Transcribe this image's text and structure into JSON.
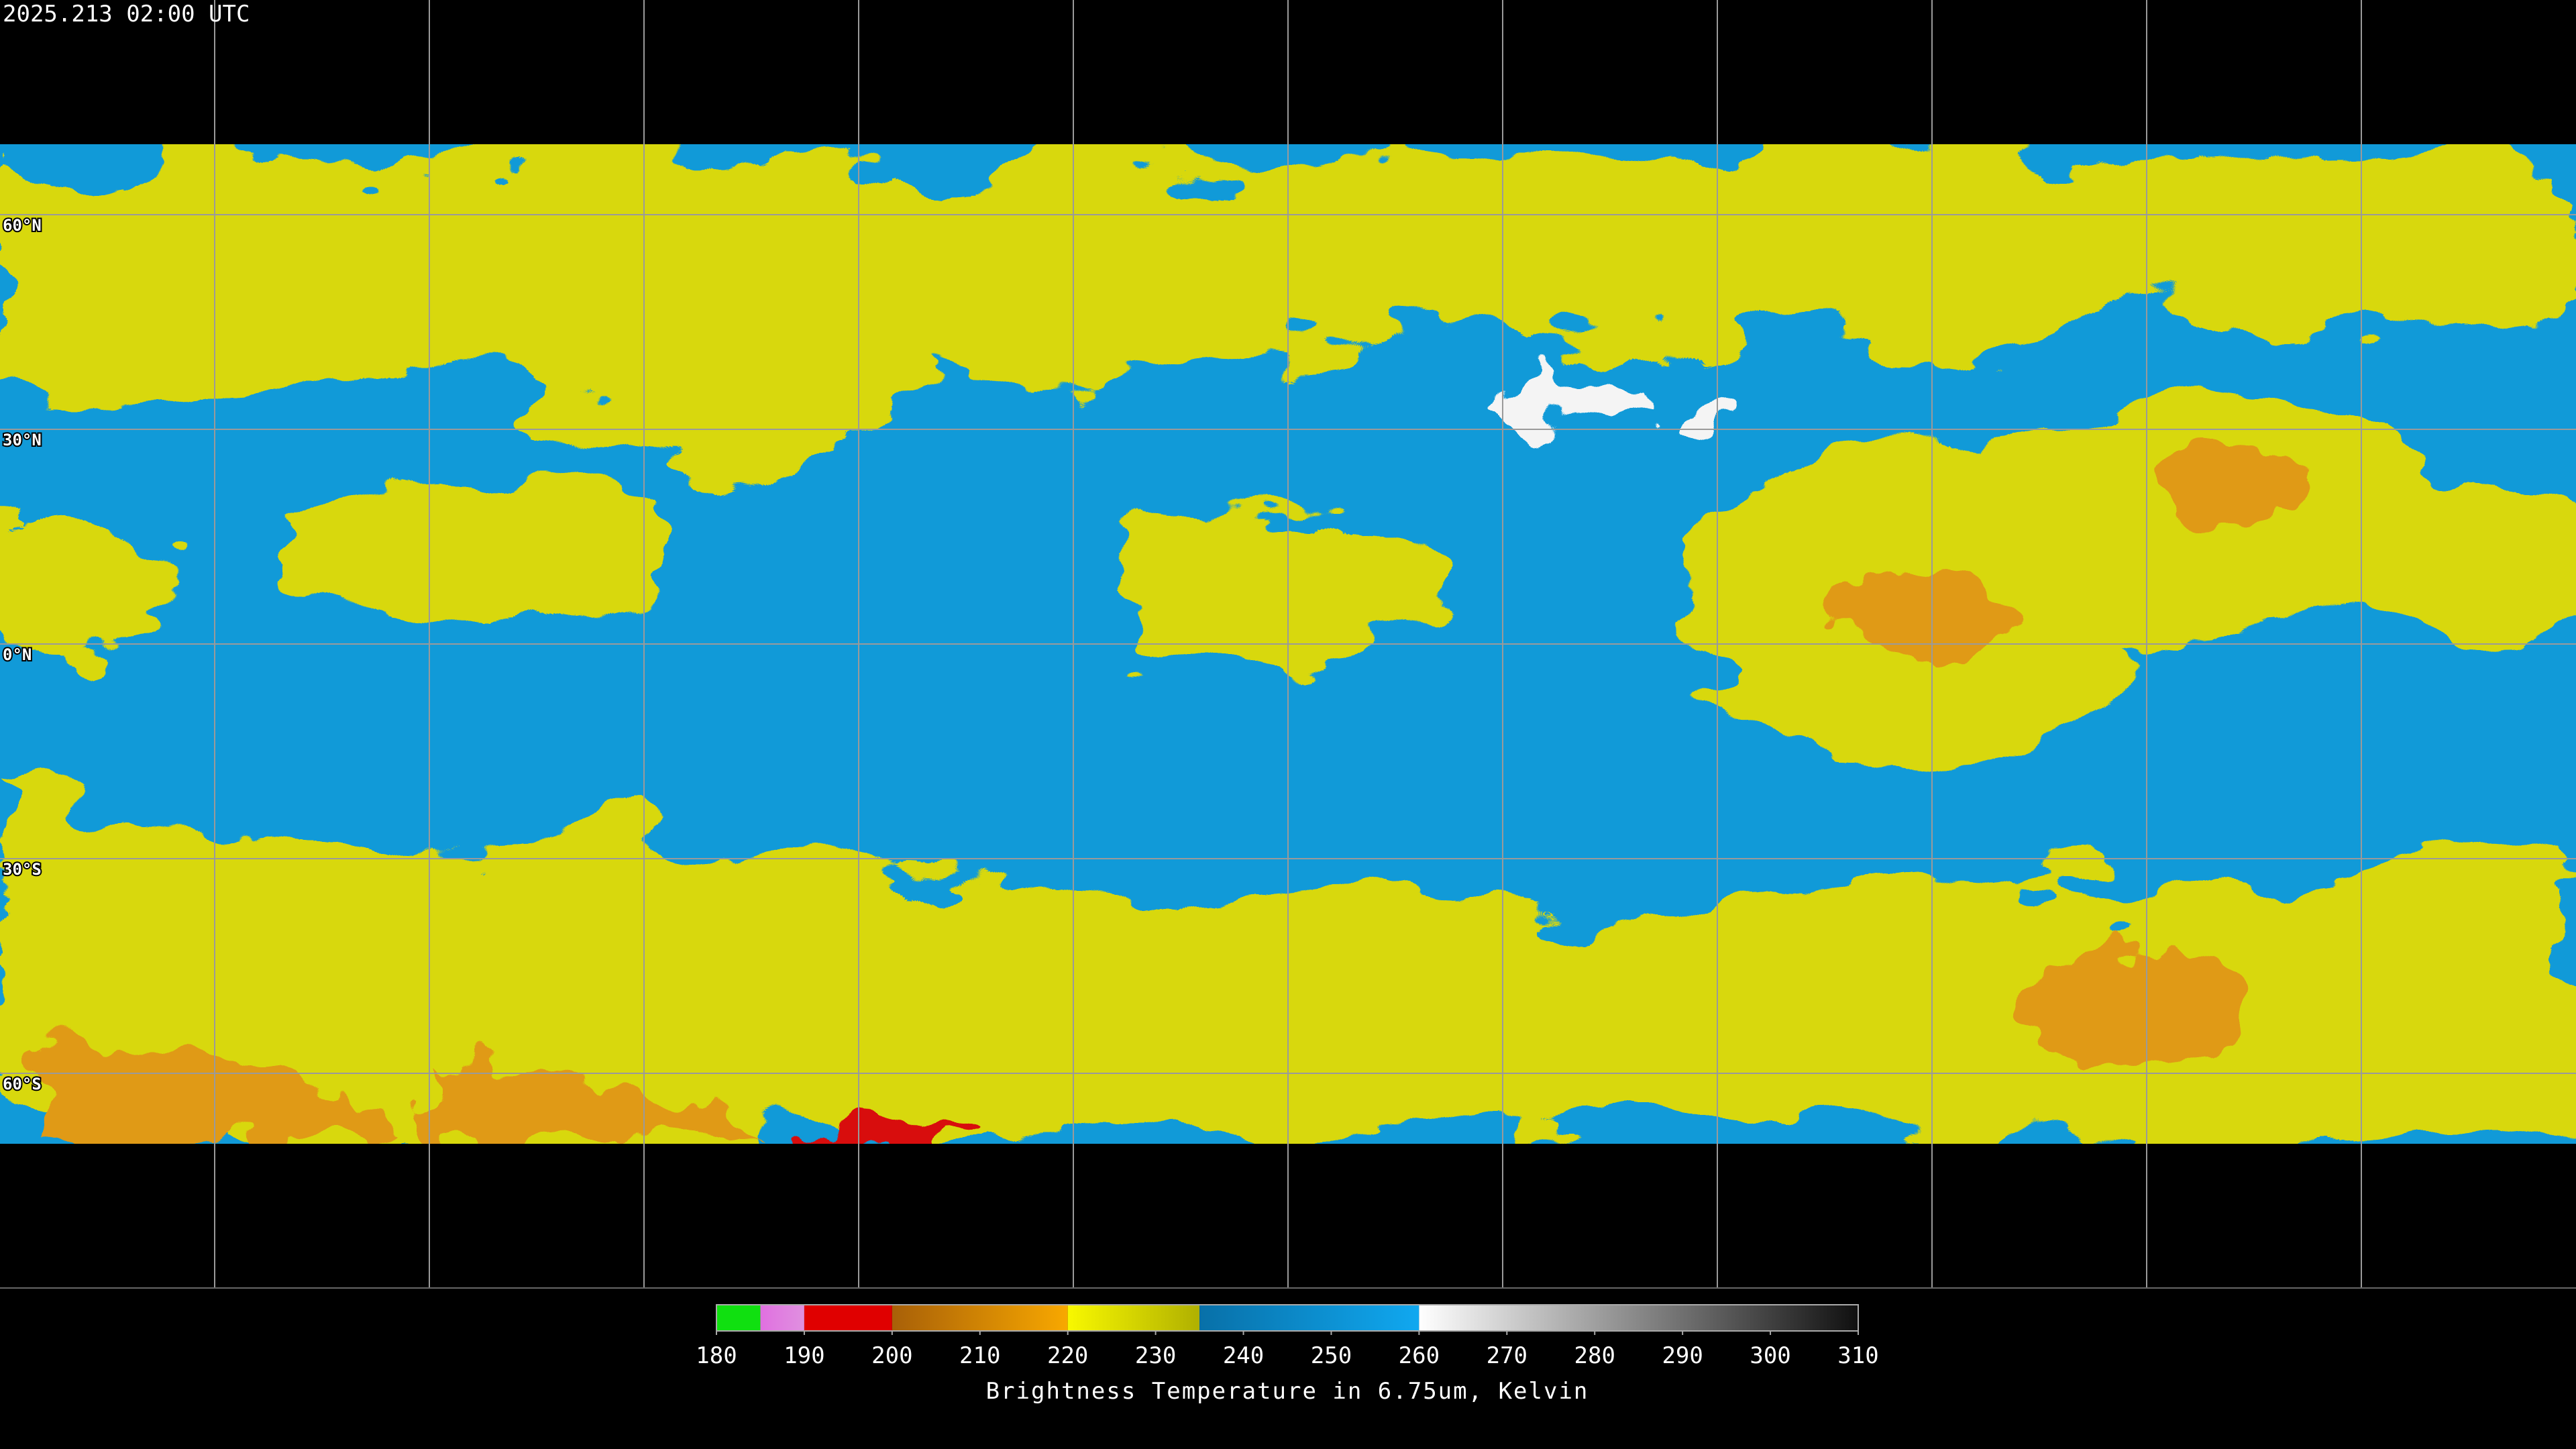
{
  "header": {
    "timestamp": "2025.213 02:00 UTC"
  },
  "map": {
    "latitude_labels": [
      "60°N",
      "30°N",
      "0°N",
      "30°S",
      "60°S"
    ]
  },
  "colorbar": {
    "range": [
      180,
      310
    ],
    "ticks": [
      180,
      190,
      200,
      210,
      220,
      230,
      240,
      250,
      260,
      270,
      280,
      290,
      300,
      310
    ],
    "label": "Brightness Temperature in 6.75um, Kelvin",
    "segments": [
      {
        "from": 180,
        "to": 185,
        "colors": [
          "#10e010",
          "#10e010"
        ]
      },
      {
        "from": 185,
        "to": 190,
        "colors": [
          "#e070e0",
          "#e090e0"
        ]
      },
      {
        "from": 190,
        "to": 200,
        "colors": [
          "#e00000",
          "#e00000"
        ]
      },
      {
        "from": 200,
        "to": 220,
        "colors": [
          "#a86008",
          "#f8a800"
        ]
      },
      {
        "from": 220,
        "to": 235,
        "colors": [
          "#f8f800",
          "#b0b000"
        ]
      },
      {
        "from": 235,
        "to": 260,
        "colors": [
          "#0870a8",
          "#10a8f0"
        ]
      },
      {
        "from": 260,
        "to": 310,
        "colors": [
          "#ffffff",
          "#101010"
        ]
      }
    ]
  }
}
